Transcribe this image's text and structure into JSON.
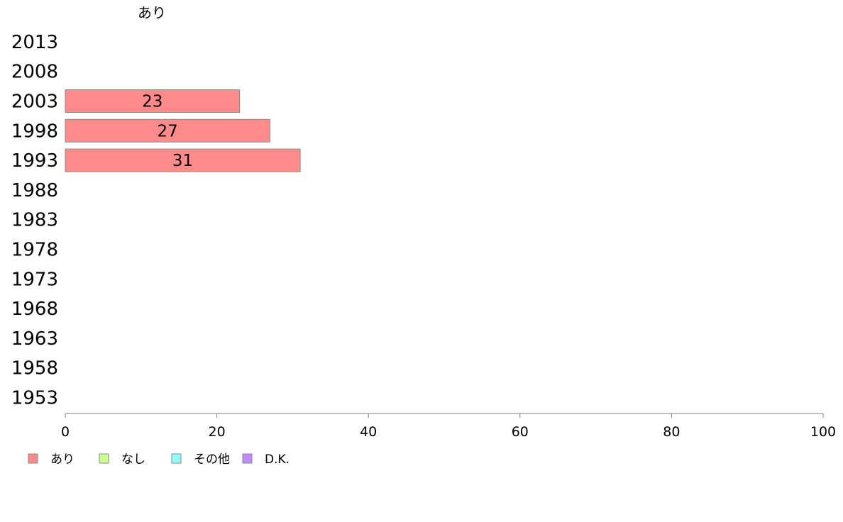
{
  "chart_data": {
    "type": "bar",
    "orientation": "horizontal",
    "categories": [
      "2013",
      "2008",
      "2003",
      "1998",
      "1993",
      "1988",
      "1983",
      "1978",
      "1973",
      "1968",
      "1963",
      "1958",
      "1953"
    ],
    "series": [
      {
        "name": "あり",
        "color": "#ff8a8a",
        "values": [
          null,
          null,
          23,
          27,
          31,
          null,
          null,
          null,
          null,
          null,
          null,
          null,
          null
        ]
      },
      {
        "name": "なし",
        "color": "#ccff8f",
        "values": [
          null,
          null,
          null,
          null,
          null,
          null,
          null,
          null,
          null,
          null,
          null,
          null,
          null
        ]
      },
      {
        "name": "その他",
        "color": "#8fffff",
        "values": [
          null,
          null,
          null,
          null,
          null,
          null,
          null,
          null,
          null,
          null,
          null,
          null,
          null
        ]
      },
      {
        "name": "D.K.",
        "color": "#c08cf7",
        "values": [
          null,
          null,
          null,
          null,
          null,
          null,
          null,
          null,
          null,
          null,
          null,
          null,
          null
        ]
      }
    ],
    "header_label": "あり",
    "xlim": [
      0,
      100
    ],
    "xticks": [
      0,
      20,
      40,
      60,
      80,
      100
    ],
    "legend_position": "bottom-left",
    "grid": false
  }
}
